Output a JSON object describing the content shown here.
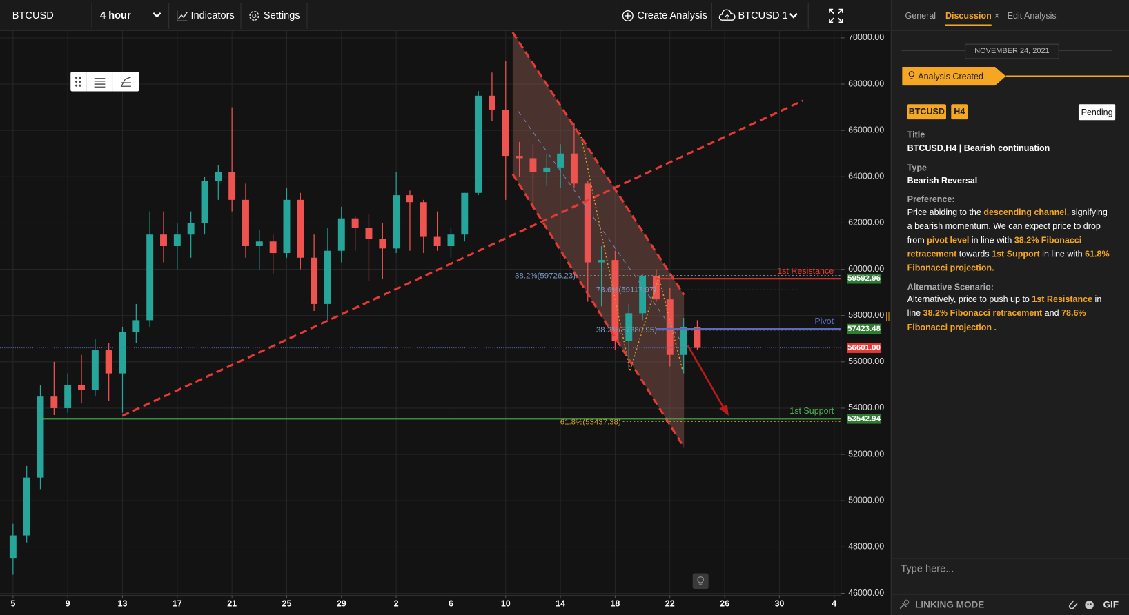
{
  "toolbar": {
    "symbol": "BTCUSD",
    "interval": "4 hour",
    "indicators": "Indicators",
    "settings": "Settings",
    "create": "Create Analysis",
    "layout": "BTCUSD 1"
  },
  "chart_data": {
    "type": "candlestick",
    "x": [
      0,
      1,
      2,
      3,
      4,
      5,
      6,
      7,
      8,
      9,
      10,
      11,
      12,
      13,
      14,
      15,
      16,
      17,
      18,
      19,
      20,
      21,
      22,
      23,
      24,
      25,
      26,
      27,
      28,
      29,
      30,
      31,
      32,
      33,
      34,
      35,
      36,
      37,
      38,
      39,
      40,
      41,
      42,
      43,
      44,
      45,
      46,
      47,
      48,
      49,
      50
    ],
    "candles": [
      [
        47500,
        49000,
        46800,
        48500
      ],
      [
        48500,
        51500,
        48200,
        51000
      ],
      [
        51000,
        55000,
        50500,
        54500
      ],
      [
        54500,
        56000,
        53700,
        54000
      ],
      [
        54000,
        55500,
        53800,
        55000
      ],
      [
        55000,
        56300,
        54200,
        54800
      ],
      [
        54800,
        57000,
        54500,
        56500
      ],
      [
        56500,
        56800,
        54300,
        55500
      ],
      [
        55500,
        57500,
        53800,
        57300
      ],
      [
        57300,
        58500,
        56800,
        57800
      ],
      [
        57800,
        62500,
        57500,
        61500
      ],
      [
        61500,
        62500,
        60300,
        61000
      ],
      [
        61000,
        62000,
        60000,
        61500
      ],
      [
        61500,
        62500,
        60500,
        62000
      ],
      [
        62000,
        64000,
        61500,
        63800
      ],
      [
        63800,
        64500,
        63000,
        64200
      ],
      [
        64200,
        67000,
        62500,
        63000
      ],
      [
        63000,
        63700,
        60500,
        61000
      ],
      [
        61000,
        61700,
        60000,
        61200
      ],
      [
        61200,
        61500,
        59800,
        60700
      ],
      [
        60700,
        63500,
        60500,
        63000
      ],
      [
        63000,
        63300,
        60000,
        60500
      ],
      [
        60500,
        61500,
        58200,
        58500
      ],
      [
        58500,
        61800,
        57800,
        60800
      ],
      [
        60800,
        62700,
        60300,
        62200
      ],
      [
        62200,
        62300,
        60800,
        61800
      ],
      [
        61800,
        62400,
        59500,
        61300
      ],
      [
        61300,
        62000,
        59600,
        60900
      ],
      [
        60900,
        64200,
        60700,
        63200
      ],
      [
        63200,
        63400,
        60800,
        62900
      ],
      [
        62900,
        63000,
        60700,
        61400
      ],
      [
        61400,
        62500,
        60800,
        61000
      ],
      [
        61000,
        61800,
        60500,
        61500
      ],
      [
        61500,
        63300,
        61200,
        63300
      ],
      [
        63300,
        67700,
        63200,
        67500
      ],
      [
        67500,
        68500,
        66400,
        66900
      ],
      [
        66900,
        69000,
        63000,
        64900
      ],
      [
        64900,
        65500,
        64000,
        64800
      ],
      [
        64800,
        65400,
        62600,
        64200
      ],
      [
        64200,
        65000,
        63600,
        64400
      ],
      [
        64400,
        65400,
        63500,
        65000
      ],
      [
        65000,
        66300,
        63500,
        63700
      ],
      [
        63700,
        63800,
        58600,
        60300
      ],
      [
        60300,
        61000,
        58400,
        60400
      ],
      [
        60400,
        60800,
        56500,
        56900
      ],
      [
        56900,
        58500,
        55700,
        58100
      ],
      [
        58100,
        59800,
        57800,
        59700
      ],
      [
        59700,
        60000,
        58600,
        58700
      ],
      [
        58700,
        59200,
        55800,
        56300
      ],
      [
        56300,
        57900,
        55500,
        57500
      ],
      [
        57500,
        57800,
        56500,
        56601
      ]
    ],
    "up_color": "#26a69a",
    "down_color": "#ef5350",
    "xlim": [
      -0.95,
      60.5
    ],
    "xticks": [
      {
        "value": 0,
        "label": "5"
      },
      {
        "value": 4,
        "label": "9"
      },
      {
        "value": 8,
        "label": "13"
      },
      {
        "value": 12,
        "label": "17"
      },
      {
        "value": 16,
        "label": "21"
      },
      {
        "value": 20,
        "label": "25"
      },
      {
        "value": 24,
        "label": "29"
      },
      {
        "value": 28,
        "label": "2"
      },
      {
        "value": 32,
        "label": "6"
      },
      {
        "value": 36,
        "label": "10"
      },
      {
        "value": 40,
        "label": "14"
      },
      {
        "value": 44,
        "label": "18"
      },
      {
        "value": 48,
        "label": "22"
      },
      {
        "value": 52,
        "label": "26"
      },
      {
        "value": 56,
        "label": "30"
      },
      {
        "value": 60,
        "label": "4"
      }
    ],
    "ylim": [
      45900,
      70330
    ],
    "yticks": [
      {
        "value": 46000,
        "label": "46000.00"
      },
      {
        "value": 48000,
        "label": "48000.00"
      },
      {
        "value": 50000,
        "label": "50000.00"
      },
      {
        "value": 52000,
        "label": "52000.00"
      },
      {
        "value": 54000,
        "label": "54000.00"
      },
      {
        "value": 56000,
        "label": "56000.00"
      },
      {
        "value": 58000,
        "label": "58000.00"
      },
      {
        "value": 60000,
        "label": "60000.00"
      },
      {
        "value": 62000,
        "label": "62000.00"
      },
      {
        "value": 64000,
        "label": "64000.00"
      },
      {
        "value": 66000,
        "label": "66000.00"
      },
      {
        "value": 68000,
        "label": "68000.00"
      },
      {
        "value": 70000,
        "label": "70000.00"
      }
    ],
    "grid": true,
    "levels": [
      {
        "name": "1st Resistance",
        "value": 59592.96,
        "start": 47,
        "color": "#e53935"
      },
      {
        "name": "Pivot",
        "value": 57423.48,
        "start": 47,
        "color": "#5c6bc0"
      },
      {
        "name": "1st Support",
        "value": 53542.94,
        "start": 2,
        "color": "#4caf50"
      }
    ],
    "tag_color": "#2e7d32",
    "current_price": {
      "value": 56601,
      "label": "56601.00"
    },
    "current_color": "#e53935",
    "fib_labels": [
      "38.2%(59726.23)",
      "78.6%(59117.97)",
      "38.2%(57380.95)",
      "61.8%(53437.38)"
    ]
  },
  "panel": {
    "tabs": [
      "General",
      "Discussion",
      "Edit Analysis"
    ],
    "active_tab": 1,
    "date": "NOVEMBER 24, 2021",
    "status_banner": "Analysis Created",
    "tags": [
      "BTCUSD",
      "H4"
    ],
    "status": "Pending",
    "fields": [
      {
        "label": "Title",
        "value": "BTCUSD,H4 | Bearish continuation"
      },
      {
        "label": "Type",
        "value": "Bearish Reversal"
      }
    ],
    "preference": {
      "label": "Preference:",
      "segments": [
        {
          "text": "Price abiding to the ",
          "em": false
        },
        {
          "text": "descending channel",
          "em": true
        },
        {
          "text": ", signifying a bearish momentum. We can expect price to drop from ",
          "em": false
        },
        {
          "text": "pivot level",
          "em": true
        },
        {
          "text": " in line with ",
          "em": false
        },
        {
          "text": "38.2% Fibonacci retracement",
          "em": true
        },
        {
          "text": " towards ",
          "em": false
        },
        {
          "text": "1st Support",
          "em": true
        },
        {
          "text": " in line with ",
          "em": false
        },
        {
          "text": "61.8% Fibonacci projection.",
          "em": true
        }
      ]
    },
    "alternative": {
      "label": "Alternative Scenario:",
      "segments": [
        {
          "text": "Alternatively, price to push up to ",
          "em": false
        },
        {
          "text": "1st Resistance",
          "em": true
        },
        {
          "text": " in line ",
          "em": false
        },
        {
          "text": " 38.2% Fibonacci retracement",
          "em": true
        },
        {
          "text": " and ",
          "em": false
        },
        {
          "text": "78.6% Fibonacci projection .",
          "em": true
        }
      ]
    },
    "input_placeholder": "Type here...",
    "linking_mode": "LINKING MODE",
    "gif": "GIF"
  }
}
